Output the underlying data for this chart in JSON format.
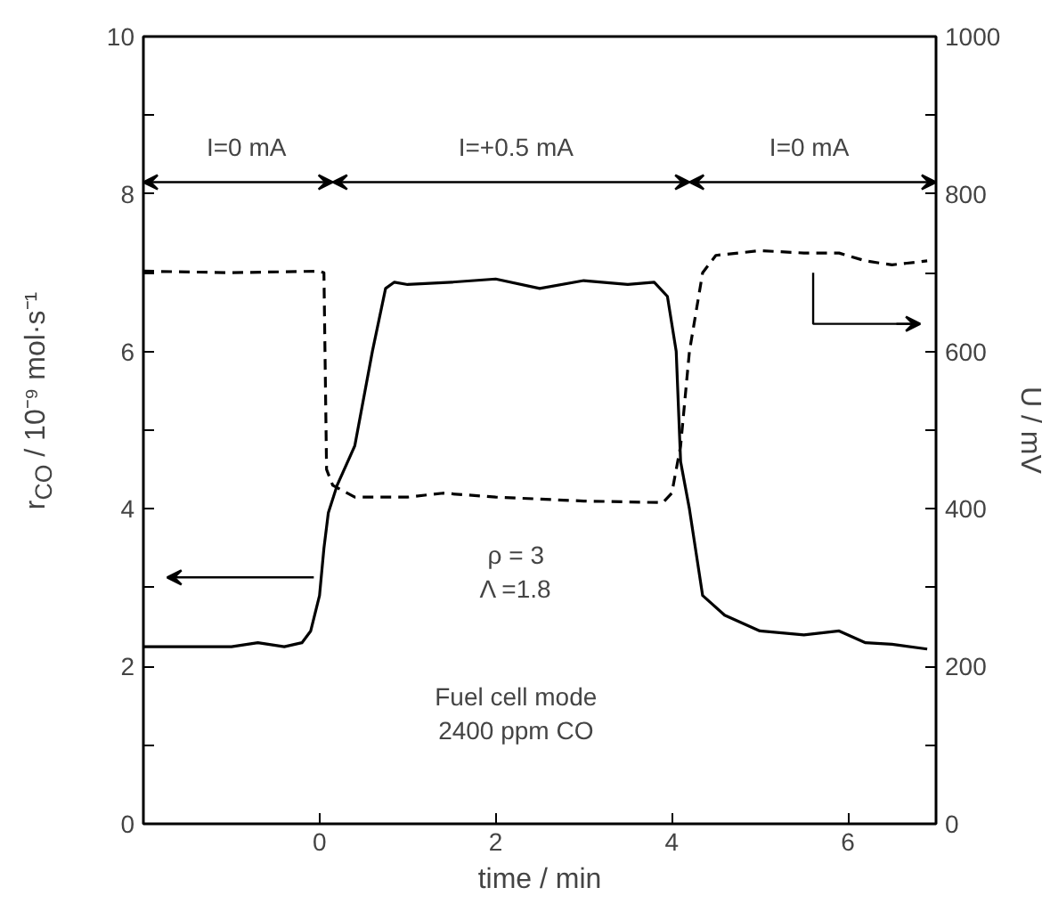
{
  "chart_data": {
    "type": "line",
    "xlabel": "time / min",
    "ylabel": "r$_{CO}$ / 10⁻⁹ mol·s⁻¹",
    "y2label": "U / mV",
    "xlim": [
      -2,
      7
    ],
    "xticks": [
      0,
      2,
      4,
      6
    ],
    "ylim": [
      0,
      10
    ],
    "yticks": [
      0,
      {
        "value": 1,
        "label": null
      },
      2,
      {
        "value": 3,
        "label": null
      },
      4,
      {
        "value": 5,
        "label": null
      },
      6,
      {
        "value": 7,
        "label": null
      },
      8,
      {
        "value": 9,
        "label": null
      },
      10
    ],
    "y2lim": [
      0,
      1000
    ],
    "y2ticks": [
      0,
      {
        "value": 100,
        "label": null
      },
      200,
      {
        "value": 300,
        "label": null
      },
      400,
      {
        "value": 500,
        "label": null
      },
      600,
      {
        "value": 700,
        "label": null
      },
      800,
      {
        "value": 900,
        "label": null
      },
      1000
    ],
    "grid": false,
    "marker": "none",
    "series": [
      {
        "color": "#000000",
        "line_style": "solid",
        "axis": "y",
        "x": [
          -2,
          -1.5,
          -1,
          -0.7,
          -0.4,
          -0.2,
          -0.1,
          0,
          0.05,
          0.1,
          0.2,
          0.4,
          0.6,
          0.75,
          0.85,
          1.0,
          1.5,
          2.0,
          2.5,
          3.0,
          3.5,
          3.8,
          3.95,
          4.05,
          4.1,
          4.2,
          4.35,
          4.6,
          5.0,
          5.5,
          5.9,
          6.2,
          6.5,
          6.9
        ],
        "values": [
          2.25,
          2.25,
          2.25,
          2.3,
          2.25,
          2.3,
          2.45,
          2.9,
          3.5,
          3.95,
          4.3,
          4.8,
          6.0,
          6.8,
          6.88,
          6.85,
          6.88,
          6.92,
          6.8,
          6.9,
          6.85,
          6.88,
          6.7,
          6.0,
          4.6,
          4.0,
          2.9,
          2.65,
          2.45,
          2.4,
          2.45,
          2.3,
          2.28,
          2.22
        ]
      },
      {
        "color": "#000000",
        "line_style": "dashed",
        "axis": "y2",
        "x": [
          -2,
          -1,
          0,
          0.05,
          0.08,
          0.15,
          0.4,
          1.0,
          1.4,
          2.0,
          3.0,
          3.9,
          4.0,
          4.1,
          4.2,
          4.35,
          4.5,
          5.0,
          5.5,
          5.9,
          6.2,
          6.5,
          6.9
        ],
        "values": [
          702,
          700,
          702,
          700,
          450,
          430,
          415,
          415,
          420,
          415,
          410,
          408,
          420,
          480,
          600,
          700,
          722,
          728,
          725,
          725,
          715,
          710,
          715
        ]
      }
    ],
    "annotations": [
      "I=0 mA",
      "I=+0.5 mA",
      "I=0 mA",
      "ρ = 3\nΛ =1.8",
      "Fuel cell mode\n2400 ppm CO"
    ]
  }
}
